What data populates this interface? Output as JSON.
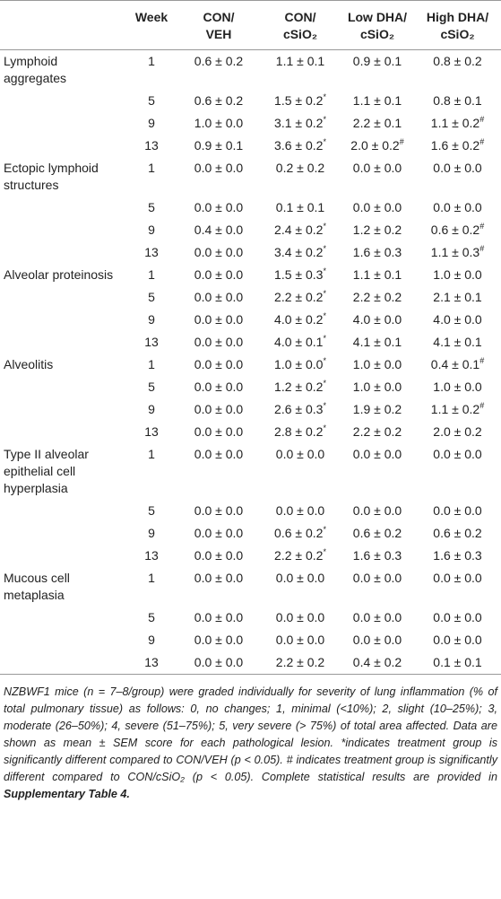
{
  "table": {
    "header": [
      "",
      "Week",
      "CON/\nVEH",
      "CON/\ncSiO₂",
      "Low DHA/\ncSiO₂",
      "High DHA/\ncSiO₂"
    ],
    "groups": [
      {
        "label": "Lymphoid aggregates",
        "rows": [
          [
            1,
            "0.6 ± 0.2",
            "1.1 ± 0.1",
            "0.9 ± 0.1",
            "0.8 ± 0.2"
          ],
          [
            5,
            "0.6 ± 0.2",
            "1.5 ± 0.2*",
            "1.1 ± 0.1",
            "0.8 ± 0.1"
          ],
          [
            9,
            "1.0 ± 0.0",
            "3.1 ± 0.2*",
            "2.2 ± 0.1",
            "1.1 ± 0.2#"
          ],
          [
            13,
            "0.9 ± 0.1",
            "3.6 ± 0.2*",
            "2.0 ± 0.2#",
            "1.6 ± 0.2#"
          ]
        ]
      },
      {
        "label": "Ectopic lymphoid structures",
        "rows": [
          [
            1,
            "0.0 ± 0.0",
            "0.2 ± 0.2",
            "0.0 ± 0.0",
            "0.0 ± 0.0"
          ],
          [
            5,
            "0.0 ± 0.0",
            "0.1 ± 0.1",
            "0.0 ± 0.0",
            "0.0 ± 0.0"
          ],
          [
            9,
            "0.4 ± 0.0",
            "2.4 ± 0.2*",
            "1.2 ± 0.2",
            "0.6 ± 0.2#"
          ],
          [
            13,
            "0.0 ± 0.0",
            "3.4 ± 0.2*",
            "1.6 ± 0.3",
            "1.1 ± 0.3#"
          ]
        ]
      },
      {
        "label": "Alveolar proteinosis",
        "rows": [
          [
            1,
            "0.0 ± 0.0",
            "1.5 ± 0.3*",
            "1.1 ± 0.1",
            "1.0 ± 0.0"
          ],
          [
            5,
            "0.0 ± 0.0",
            "2.2 ± 0.2*",
            "2.2 ± 0.2",
            "2.1 ± 0.1"
          ],
          [
            9,
            "0.0 ± 0.0",
            "4.0 ± 0.2*",
            "4.0 ± 0.0",
            "4.0 ± 0.0"
          ],
          [
            13,
            "0.0 ± 0.0",
            "4.0 ± 0.1*",
            "4.1 ± 0.1",
            "4.1 ± 0.1"
          ]
        ]
      },
      {
        "label": "Alveolitis",
        "rows": [
          [
            1,
            "0.0 ± 0.0",
            "1.0 ± 0.0*",
            "1.0 ± 0.0",
            "0.4 ± 0.1#"
          ],
          [
            5,
            "0.0 ± 0.0",
            "1.2 ± 0.2*",
            "1.0 ± 0.0",
            "1.0 ± 0.0"
          ],
          [
            9,
            "0.0 ± 0.0",
            "2.6 ± 0.3*",
            "1.9 ± 0.2",
            "1.1 ± 0.2#"
          ],
          [
            13,
            "0.0 ± 0.0",
            "2.8 ± 0.2*",
            "2.2 ± 0.2",
            "2.0 ± 0.2"
          ]
        ]
      },
      {
        "label": "Type II alveolar epithelial cell hyperplasia",
        "rows": [
          [
            1,
            "0.0 ± 0.0",
            "0.0 ± 0.0",
            "0.0 ± 0.0",
            "0.0 ± 0.0"
          ],
          [
            5,
            "0.0 ± 0.0",
            "0.0 ± 0.0",
            "0.0 ± 0.0",
            "0.0 ± 0.0"
          ],
          [
            9,
            "0.0 ± 0.0",
            "0.6 ± 0.2*",
            "0.6 ± 0.2",
            "0.6 ± 0.2"
          ],
          [
            13,
            "0.0 ± 0.0",
            "2.2 ± 0.2*",
            "1.6 ± 0.3",
            "1.6 ± 0.3"
          ]
        ]
      },
      {
        "label": "Mucous cell metaplasia",
        "rows": [
          [
            1,
            "0.0 ± 0.0",
            "0.0 ± 0.0",
            "0.0 ± 0.0",
            "0.0 ± 0.0"
          ],
          [
            5,
            "0.0 ± 0.0",
            "0.0 ± 0.0",
            "0.0 ± 0.0",
            "0.0 ± 0.0"
          ],
          [
            9,
            "0.0 ± 0.0",
            "0.0 ± 0.0",
            "0.0 ± 0.0",
            "0.0 ± 0.0"
          ],
          [
            13,
            "0.0 ± 0.0",
            "2.2 ± 0.2",
            "0.4 ± 0.2",
            "0.1 ± 0.1"
          ]
        ]
      }
    ]
  },
  "footnote": {
    "text": "NZBWF1 mice (n = 7–8/group) were graded individually for severity of lung inflammation (% of total pulmonary tissue) as follows: 0, no changes; 1, minimal (<10%); 2, slight (10–25%); 3, moderate (26–50%); 4, severe (51–75%); 5, very severe (> 75%) of total area affected. Data are shown as mean ± SEM score for each pathological lesion. *indicates treatment group is significantly different compared to CON/VEH (p < 0.05). # indicates treatment group is significantly different compared to CON/cSiO₂ (p < 0.05). Complete statistical results are provided in ",
    "reference": "Supplementary Table 4."
  }
}
